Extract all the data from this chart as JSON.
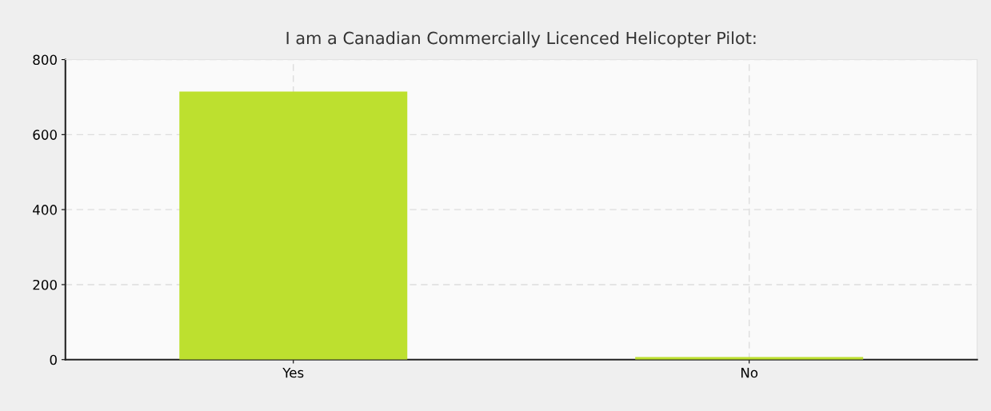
{
  "chart_data": {
    "type": "bar",
    "title": "I am a Canadian Commercially Licenced Helicopter Pilot:",
    "categories": [
      "Yes",
      "No"
    ],
    "values": [
      715,
      7
    ],
    "color": "#bde02f",
    "ylim": [
      0,
      800
    ],
    "yticks": [
      0,
      200,
      400,
      600,
      800
    ],
    "grid": true
  }
}
